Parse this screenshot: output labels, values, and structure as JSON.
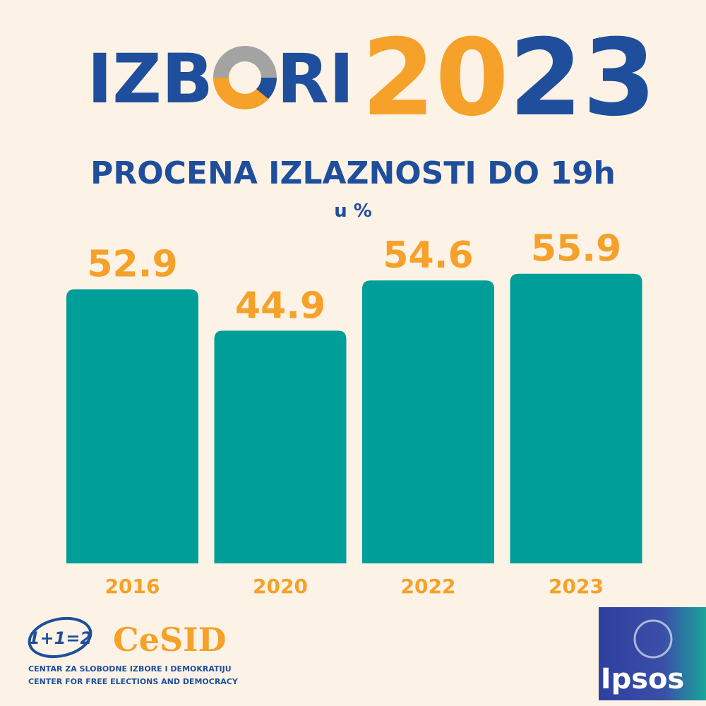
{
  "branding": {
    "logo_left": "IZB",
    "logo_right": "RI",
    "year_a": "20",
    "year_b": "23",
    "cesid_mark": "1+1=2",
    "cesid_name": "CeSID",
    "cesid_line_1": "CENTAR ZA SLOBODNE IZBORE I DEMOKRATIJU",
    "cesid_line_2": "CENTER FOR FREE ELECTIONS AND DEMOCRACY",
    "ipsos": "Ipsos"
  },
  "chart_data": {
    "type": "bar",
    "title": "PROCENA IZLAZNOSTI DO 19h",
    "subtitle": "u %",
    "categories": [
      "2016",
      "2020",
      "2022",
      "2023"
    ],
    "values": [
      52.9,
      44.9,
      54.6,
      55.9
    ],
    "color": "#009e98",
    "label_color": "#f5a12a"
  }
}
